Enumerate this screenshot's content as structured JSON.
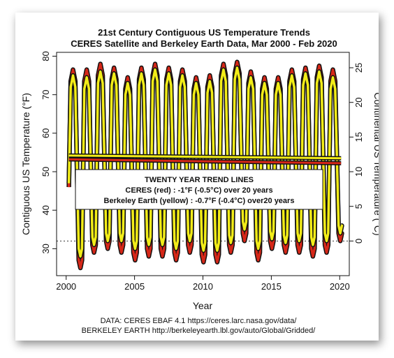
{
  "chart_data": {
    "type": "line",
    "title": "21st Century Contiguous US Temperature Trends",
    "subtitle": "CERES Satellite and Berkeley Earth Data, Mar 2000 - Feb 2020",
    "xlabel": "Year",
    "ylabel_left": "Contiguous US Temperature (°F)",
    "ylabel_right": "Continental US Temperature (°C)",
    "xlim": [
      1999.3,
      2020.7
    ],
    "ylim": [
      23,
      81
    ],
    "x_ticks": [
      2000,
      2005,
      2010,
      2015,
      2020
    ],
    "y_ticks_left": [
      30,
      40,
      50,
      60,
      70,
      80
    ],
    "y_ticks_right_c": [
      0,
      5,
      10,
      15,
      20,
      25
    ],
    "reference_line_f": 32,
    "series": [
      {
        "name": "CERES (red)",
        "color": "#d62718",
        "start": {
          "x": 2000.2,
          "y": 46
        },
        "summer_max": [
          76.5,
          76.5,
          78,
          77,
          74.5,
          77,
          78,
          77,
          76.5,
          74.5,
          75,
          78,
          78.5,
          76,
          74.5,
          74.5,
          76.5,
          77,
          77.5,
          76.5
        ],
        "winter_min": [
          25,
          29,
          30,
          29,
          27,
          28,
          28,
          27,
          29,
          26.5,
          26.5,
          29,
          32,
          27,
          30,
          29,
          29,
          28,
          29,
          32
        ],
        "end": {
          "x": 2020.1,
          "y": 33
        },
        "trend": {
          "x": [
            2000.2,
            2020.1
          ],
          "y": [
            53.2,
            52.2
          ]
        }
      },
      {
        "name": "Berkeley Earth (yellow)",
        "color": "#f2ec18",
        "start": {
          "x": 2000.2,
          "y": 47
        },
        "summer_max": [
          75,
          74.5,
          76,
          75.5,
          73,
          75.5,
          76.5,
          75.5,
          75,
          73,
          73.5,
          76.5,
          77,
          74.5,
          73,
          73,
          75,
          75.5,
          76,
          74.5
        ],
        "winter_min": [
          28,
          31,
          32,
          32,
          30,
          31,
          31,
          30,
          32,
          29.5,
          29.5,
          31.5,
          35,
          30,
          32.5,
          31.5,
          32,
          31,
          32,
          34
        ],
        "end": {
          "x": 2020.1,
          "y": 36
        },
        "trend": {
          "x": [
            2000.2,
            2020.1
          ],
          "y": [
            54.2,
            53.5
          ]
        }
      }
    ],
    "annotation": {
      "title": "TWENTY YEAR TREND LINES",
      "line1": "CERES (red) : -1°F (-0.5°C) over 20 years",
      "line2": "Berkeley Earth (yellow) : -0.7°F (-0.4°C) over20 years"
    },
    "grid": false,
    "legend": "center"
  },
  "footer": {
    "line1": "DATA: CERES EBAF 4.1 https://ceres.larc.nasa.gov/data/",
    "line2": "BERKELEY EARTH http://berkeleyearth.lbl.gov/auto/Global/Gridded/"
  }
}
